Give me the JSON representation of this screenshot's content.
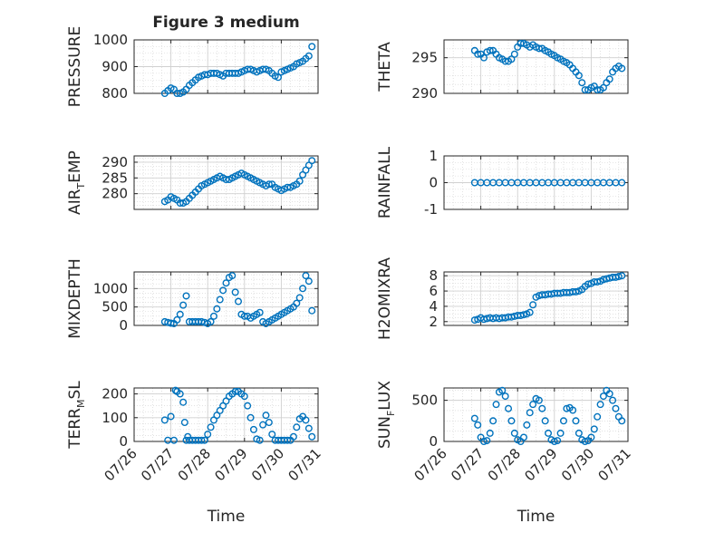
{
  "title": "Figure 3 medium",
  "xlabel": "Time",
  "x_ticks": [
    "07/26",
    "07/27",
    "07/28",
    "07/29",
    "07/30",
    "07/31"
  ],
  "colors": {
    "marker": "#0072BD",
    "axis": "#262626",
    "grid": "#d0d0d0",
    "background": "#ffffff"
  },
  "chart_data": [
    {
      "type": "scatter",
      "position": "row1-left",
      "ylabel_main": "PRESSURE",
      "ylabel_sub": "",
      "ylim": [
        800,
        1000
      ],
      "yticks": [
        "800",
        "900",
        "1000"
      ],
      "ytick_values": [
        800,
        900,
        1000
      ],
      "x": [
        "2023-07-26 20:00",
        "2023-07-26 22:00",
        "2023-07-27 00:00",
        "2023-07-27 02:00",
        "2023-07-27 04:00",
        "2023-07-27 06:00",
        "2023-07-27 08:00",
        "2023-07-27 10:00",
        "2023-07-27 12:00",
        "2023-07-27 14:00",
        "2023-07-27 16:00",
        "2023-07-27 18:00",
        "2023-07-27 20:00",
        "2023-07-27 22:00",
        "2023-07-28 00:00",
        "2023-07-28 02:00",
        "2023-07-28 04:00",
        "2023-07-28 06:00",
        "2023-07-28 08:00",
        "2023-07-28 10:00",
        "2023-07-28 12:00",
        "2023-07-28 14:00",
        "2023-07-28 16:00",
        "2023-07-28 18:00",
        "2023-07-28 20:00",
        "2023-07-28 22:00",
        "2023-07-29 00:00",
        "2023-07-29 02:00",
        "2023-07-29 04:00",
        "2023-07-29 06:00",
        "2023-07-29 08:00",
        "2023-07-29 10:00",
        "2023-07-29 12:00",
        "2023-07-29 14:00",
        "2023-07-29 16:00",
        "2023-07-29 18:00",
        "2023-07-29 20:00",
        "2023-07-29 22:00",
        "2023-07-30 00:00",
        "2023-07-30 02:00",
        "2023-07-30 04:00",
        "2023-07-30 06:00",
        "2023-07-30 08:00",
        "2023-07-30 10:00",
        "2023-07-30 12:00",
        "2023-07-30 14:00",
        "2023-07-30 16:00",
        "2023-07-30 18:00",
        "2023-07-30 20:00"
      ],
      "y": [
        800,
        810,
        820,
        815,
        800,
        800,
        805,
        815,
        830,
        840,
        850,
        860,
        865,
        870,
        870,
        875,
        875,
        875,
        870,
        865,
        875,
        875,
        875,
        875,
        875,
        880,
        885,
        890,
        890,
        885,
        880,
        885,
        890,
        890,
        885,
        875,
        865,
        860,
        880,
        885,
        890,
        895,
        900,
        910,
        915,
        920,
        930,
        940,
        975
      ]
    },
    {
      "type": "scatter",
      "position": "row1-right",
      "ylabel_main": "THETA",
      "ylabel_sub": "",
      "ylim": [
        290,
        297.5
      ],
      "yticks": [
        "290",
        "295"
      ],
      "ytick_values": [
        290,
        295
      ],
      "x": [
        "2023-07-26 20:00",
        "2023-07-26 22:00",
        "2023-07-27 00:00",
        "2023-07-27 02:00",
        "2023-07-27 04:00",
        "2023-07-27 06:00",
        "2023-07-27 08:00",
        "2023-07-27 10:00",
        "2023-07-27 12:00",
        "2023-07-27 14:00",
        "2023-07-27 16:00",
        "2023-07-27 18:00",
        "2023-07-27 20:00",
        "2023-07-27 22:00",
        "2023-07-28 00:00",
        "2023-07-28 02:00",
        "2023-07-28 04:00",
        "2023-07-28 06:00",
        "2023-07-28 08:00",
        "2023-07-28 10:00",
        "2023-07-28 12:00",
        "2023-07-28 14:00",
        "2023-07-28 16:00",
        "2023-07-28 18:00",
        "2023-07-28 20:00",
        "2023-07-28 22:00",
        "2023-07-29 00:00",
        "2023-07-29 02:00",
        "2023-07-29 04:00",
        "2023-07-29 06:00",
        "2023-07-29 08:00",
        "2023-07-29 10:00",
        "2023-07-29 12:00",
        "2023-07-29 14:00",
        "2023-07-29 16:00",
        "2023-07-29 18:00",
        "2023-07-29 20:00",
        "2023-07-29 22:00",
        "2023-07-30 00:00",
        "2023-07-30 02:00",
        "2023-07-30 04:00",
        "2023-07-30 06:00",
        "2023-07-30 08:00",
        "2023-07-30 10:00",
        "2023-07-30 12:00",
        "2023-07-30 14:00",
        "2023-07-30 16:00",
        "2023-07-30 18:00",
        "2023-07-30 20:00"
      ],
      "y": [
        296,
        295.5,
        295.5,
        295,
        295.8,
        296,
        296,
        295.5,
        295,
        294.8,
        294.5,
        294.5,
        294.8,
        295.5,
        296.5,
        297,
        297,
        296.8,
        296.5,
        296.8,
        296.5,
        296.3,
        296.3,
        296,
        295.8,
        295.5,
        295.3,
        295,
        294.8,
        294.5,
        294.3,
        294,
        293.5,
        293,
        292.5,
        291.5,
        290.5,
        290.5,
        290.8,
        291,
        290.5,
        290.5,
        290.8,
        291.5,
        292,
        293,
        293.5,
        293.8,
        293.5
      ]
    },
    {
      "type": "scatter",
      "position": "row2-left",
      "ylabel_main": "AIR",
      "ylabel_sub": "T",
      "ylabel_rest": "EMP",
      "ylim": [
        275,
        292
      ],
      "yticks": [
        "280",
        "285",
        "290"
      ],
      "ytick_values": [
        280,
        285,
        290
      ],
      "x": [
        "2023-07-26 20:00",
        "2023-07-26 22:00",
        "2023-07-27 00:00",
        "2023-07-27 02:00",
        "2023-07-27 04:00",
        "2023-07-27 06:00",
        "2023-07-27 08:00",
        "2023-07-27 10:00",
        "2023-07-27 12:00",
        "2023-07-27 14:00",
        "2023-07-27 16:00",
        "2023-07-27 18:00",
        "2023-07-27 20:00",
        "2023-07-27 22:00",
        "2023-07-28 00:00",
        "2023-07-28 02:00",
        "2023-07-28 04:00",
        "2023-07-28 06:00",
        "2023-07-28 08:00",
        "2023-07-28 10:00",
        "2023-07-28 12:00",
        "2023-07-28 14:00",
        "2023-07-28 16:00",
        "2023-07-28 18:00",
        "2023-07-28 20:00",
        "2023-07-28 22:00",
        "2023-07-29 00:00",
        "2023-07-29 02:00",
        "2023-07-29 04:00",
        "2023-07-29 06:00",
        "2023-07-29 08:00",
        "2023-07-29 10:00",
        "2023-07-29 12:00",
        "2023-07-29 14:00",
        "2023-07-29 16:00",
        "2023-07-29 18:00",
        "2023-07-29 20:00",
        "2023-07-29 22:00",
        "2023-07-30 00:00",
        "2023-07-30 02:00",
        "2023-07-30 04:00",
        "2023-07-30 06:00",
        "2023-07-30 08:00",
        "2023-07-30 10:00",
        "2023-07-30 12:00",
        "2023-07-30 14:00",
        "2023-07-30 16:00",
        "2023-07-30 18:00",
        "2023-07-30 20:00"
      ],
      "y": [
        277.5,
        278,
        279,
        278.5,
        278,
        277,
        277,
        277.5,
        278.5,
        279.5,
        280.5,
        281.5,
        282.5,
        283,
        283.5,
        284,
        284.5,
        285,
        285.5,
        285,
        284.5,
        284.5,
        285,
        285.5,
        286,
        286.5,
        286,
        285.5,
        285,
        284.5,
        284,
        283.5,
        283,
        282.5,
        283,
        283,
        282,
        281.5,
        281,
        281.5,
        282,
        282,
        282.5,
        283,
        284,
        286,
        287.5,
        289,
        290.5
      ]
    },
    {
      "type": "scatter",
      "position": "row2-right",
      "ylabel_main": "RAINFALL",
      "ylabel_sub": "",
      "ylim": [
        -1,
        1
      ],
      "yticks": [
        "-1",
        "0",
        "1"
      ],
      "ytick_values": [
        -1,
        0,
        1
      ],
      "x": [
        "2023-07-26 20:00",
        "2023-07-27 00:00",
        "2023-07-27 04:00",
        "2023-07-27 08:00",
        "2023-07-27 12:00",
        "2023-07-27 16:00",
        "2023-07-27 20:00",
        "2023-07-28 00:00",
        "2023-07-28 04:00",
        "2023-07-28 08:00",
        "2023-07-28 12:00",
        "2023-07-28 16:00",
        "2023-07-28 20:00",
        "2023-07-29 00:00",
        "2023-07-29 04:00",
        "2023-07-29 08:00",
        "2023-07-29 12:00",
        "2023-07-29 16:00",
        "2023-07-29 20:00",
        "2023-07-30 00:00",
        "2023-07-30 04:00",
        "2023-07-30 08:00",
        "2023-07-30 12:00",
        "2023-07-30 16:00",
        "2023-07-30 20:00"
      ],
      "y": [
        0,
        0,
        0,
        0,
        0,
        0,
        0,
        0,
        0,
        0,
        0,
        0,
        0,
        0,
        0,
        0,
        0,
        0,
        0,
        0,
        0,
        0,
        0,
        0,
        0
      ]
    },
    {
      "type": "scatter",
      "position": "row3-left",
      "ylabel_main": "MIXDEPTH",
      "ylabel_sub": "",
      "ylim": [
        0,
        1450
      ],
      "yticks": [
        "0",
        "500",
        "1000"
      ],
      "ytick_values": [
        0,
        500,
        1000
      ],
      "x": [
        "2023-07-26 20:00",
        "2023-07-26 22:00",
        "2023-07-27 00:00",
        "2023-07-27 02:00",
        "2023-07-27 04:00",
        "2023-07-27 06:00",
        "2023-07-27 08:00",
        "2023-07-27 10:00",
        "2023-07-27 12:00",
        "2023-07-27 14:00",
        "2023-07-27 16:00",
        "2023-07-27 18:00",
        "2023-07-27 20:00",
        "2023-07-27 22:00",
        "2023-07-28 00:00",
        "2023-07-28 02:00",
        "2023-07-28 04:00",
        "2023-07-28 06:00",
        "2023-07-28 08:00",
        "2023-07-28 10:00",
        "2023-07-28 12:00",
        "2023-07-28 14:00",
        "2023-07-28 16:00",
        "2023-07-28 18:00",
        "2023-07-28 20:00",
        "2023-07-28 22:00",
        "2023-07-29 00:00",
        "2023-07-29 02:00",
        "2023-07-29 04:00",
        "2023-07-29 06:00",
        "2023-07-29 08:00",
        "2023-07-29 10:00",
        "2023-07-29 12:00",
        "2023-07-29 14:00",
        "2023-07-29 16:00",
        "2023-07-29 18:00",
        "2023-07-29 20:00",
        "2023-07-29 22:00",
        "2023-07-30 00:00",
        "2023-07-30 02:00",
        "2023-07-30 04:00",
        "2023-07-30 06:00",
        "2023-07-30 08:00",
        "2023-07-30 10:00",
        "2023-07-30 12:00",
        "2023-07-30 14:00",
        "2023-07-30 16:00",
        "2023-07-30 18:00",
        "2023-07-30 20:00"
      ],
      "y": [
        100,
        80,
        60,
        50,
        150,
        300,
        550,
        800,
        100,
        100,
        100,
        100,
        100,
        80,
        50,
        100,
        250,
        450,
        700,
        950,
        1150,
        1300,
        1350,
        900,
        650,
        300,
        250,
        250,
        200,
        250,
        300,
        350,
        100,
        50,
        100,
        150,
        200,
        250,
        300,
        350,
        400,
        450,
        500,
        600,
        750,
        1000,
        1350,
        1200,
        400
      ]
    },
    {
      "type": "scatter",
      "position": "row3-right",
      "ylabel_main": "H2OMIXRA",
      "ylabel_sub": "",
      "ylim": [
        1.5,
        8.5
      ],
      "yticks": [
        "2",
        "4",
        "6",
        "8"
      ],
      "ytick_values": [
        2,
        4,
        6,
        8
      ],
      "x": [
        "2023-07-26 20:00",
        "2023-07-26 22:00",
        "2023-07-27 00:00",
        "2023-07-27 02:00",
        "2023-07-27 04:00",
        "2023-07-27 06:00",
        "2023-07-27 08:00",
        "2023-07-27 10:00",
        "2023-07-27 12:00",
        "2023-07-27 14:00",
        "2023-07-27 16:00",
        "2023-07-27 18:00",
        "2023-07-27 20:00",
        "2023-07-27 22:00",
        "2023-07-28 00:00",
        "2023-07-28 02:00",
        "2023-07-28 04:00",
        "2023-07-28 06:00",
        "2023-07-28 08:00",
        "2023-07-28 10:00",
        "2023-07-28 12:00",
        "2023-07-28 14:00",
        "2023-07-28 16:00",
        "2023-07-28 18:00",
        "2023-07-28 20:00",
        "2023-07-28 22:00",
        "2023-07-29 00:00",
        "2023-07-29 02:00",
        "2023-07-29 04:00",
        "2023-07-29 06:00",
        "2023-07-29 08:00",
        "2023-07-29 10:00",
        "2023-07-29 12:00",
        "2023-07-29 14:00",
        "2023-07-29 16:00",
        "2023-07-29 18:00",
        "2023-07-29 20:00",
        "2023-07-29 22:00",
        "2023-07-30 00:00",
        "2023-07-30 02:00",
        "2023-07-30 04:00",
        "2023-07-30 06:00",
        "2023-07-30 08:00",
        "2023-07-30 10:00",
        "2023-07-30 12:00",
        "2023-07-30 14:00",
        "2023-07-30 16:00",
        "2023-07-30 18:00",
        "2023-07-30 20:00"
      ],
      "y": [
        2.2,
        2.3,
        2.5,
        2.3,
        2.4,
        2.5,
        2.4,
        2.5,
        2.4,
        2.5,
        2.5,
        2.6,
        2.6,
        2.7,
        2.8,
        2.8,
        2.9,
        3.0,
        3.2,
        4.2,
        5.2,
        5.4,
        5.5,
        5.5,
        5.6,
        5.6,
        5.7,
        5.7,
        5.7,
        5.8,
        5.8,
        5.8,
        5.9,
        5.9,
        6.0,
        6.2,
        6.6,
        6.9,
        7.0,
        7.2,
        7.2,
        7.3,
        7.5,
        7.6,
        7.7,
        7.8,
        7.8,
        7.9,
        8.0
      ]
    },
    {
      "type": "scatter",
      "position": "row4-left",
      "ylabel_main": "TERR",
      "ylabel_sub": "M",
      "ylabel_rest": "SL",
      "ylim": [
        0,
        225
      ],
      "yticks": [
        "0",
        "100",
        "200"
      ],
      "ytick_values": [
        0,
        100,
        200
      ],
      "x": [
        "2023-07-26 20:00",
        "2023-07-26 22:00",
        "2023-07-27 00:00",
        "2023-07-27 02:00",
        "2023-07-27 03:00",
        "2023-07-27 04:00",
        "2023-07-27 06:00",
        "2023-07-27 08:00",
        "2023-07-27 09:00",
        "2023-07-27 10:00",
        "2023-07-27 11:00",
        "2023-07-27 12:00",
        "2023-07-27 14:00",
        "2023-07-27 16:00",
        "2023-07-27 18:00",
        "2023-07-27 20:00",
        "2023-07-27 22:00",
        "2023-07-28 00:00",
        "2023-07-28 02:00",
        "2023-07-28 04:00",
        "2023-07-28 06:00",
        "2023-07-28 08:00",
        "2023-07-28 10:00",
        "2023-07-28 12:00",
        "2023-07-28 14:00",
        "2023-07-28 16:00",
        "2023-07-28 18:00",
        "2023-07-28 20:00",
        "2023-07-28 22:00",
        "2023-07-29 00:00",
        "2023-07-29 02:00",
        "2023-07-29 04:00",
        "2023-07-29 06:00",
        "2023-07-29 08:00",
        "2023-07-29 10:00",
        "2023-07-29 12:00",
        "2023-07-29 14:00",
        "2023-07-29 16:00",
        "2023-07-29 18:00",
        "2023-07-29 20:00",
        "2023-07-29 22:00",
        "2023-07-30 00:00",
        "2023-07-30 02:00",
        "2023-07-30 04:00",
        "2023-07-30 06:00",
        "2023-07-30 08:00",
        "2023-07-30 10:00",
        "2023-07-30 12:00",
        "2023-07-30 14:00",
        "2023-07-30 16:00",
        "2023-07-30 18:00",
        "2023-07-30 20:00"
      ],
      "y": [
        90,
        5,
        105,
        5,
        215,
        210,
        200,
        165,
        80,
        5,
        20,
        5,
        5,
        5,
        5,
        5,
        5,
        30,
        60,
        90,
        110,
        130,
        150,
        170,
        190,
        200,
        210,
        210,
        200,
        190,
        150,
        100,
        50,
        10,
        5,
        70,
        110,
        80,
        30,
        5,
        5,
        5,
        5,
        5,
        5,
        20,
        60,
        95,
        105,
        90,
        55,
        20
      ]
    },
    {
      "type": "scatter",
      "position": "row4-right",
      "ylabel_main": "SUN",
      "ylabel_sub": "F",
      "ylabel_rest": "LUX",
      "ylim": [
        0,
        650
      ],
      "yticks": [
        "0",
        "500"
      ],
      "ytick_values": [
        0,
        500
      ],
      "x": [
        "2023-07-26 20:00",
        "2023-07-26 22:00",
        "2023-07-27 00:00",
        "2023-07-27 02:00",
        "2023-07-27 04:00",
        "2023-07-27 06:00",
        "2023-07-27 08:00",
        "2023-07-27 10:00",
        "2023-07-27 12:00",
        "2023-07-27 14:00",
        "2023-07-27 16:00",
        "2023-07-27 18:00",
        "2023-07-27 20:00",
        "2023-07-27 22:00",
        "2023-07-28 00:00",
        "2023-07-28 02:00",
        "2023-07-28 04:00",
        "2023-07-28 06:00",
        "2023-07-28 08:00",
        "2023-07-28 10:00",
        "2023-07-28 12:00",
        "2023-07-28 14:00",
        "2023-07-28 16:00",
        "2023-07-28 18:00",
        "2023-07-28 20:00",
        "2023-07-28 22:00",
        "2023-07-29 00:00",
        "2023-07-29 02:00",
        "2023-07-29 04:00",
        "2023-07-29 06:00",
        "2023-07-29 08:00",
        "2023-07-29 10:00",
        "2023-07-29 12:00",
        "2023-07-29 14:00",
        "2023-07-29 16:00",
        "2023-07-29 18:00",
        "2023-07-29 20:00",
        "2023-07-29 22:00",
        "2023-07-30 00:00",
        "2023-07-30 02:00",
        "2023-07-30 04:00",
        "2023-07-30 06:00",
        "2023-07-30 08:00",
        "2023-07-30 10:00",
        "2023-07-30 12:00",
        "2023-07-30 14:00",
        "2023-07-30 16:00",
        "2023-07-30 18:00",
        "2023-07-30 20:00"
      ],
      "y": [
        280,
        200,
        50,
        0,
        10,
        100,
        250,
        450,
        600,
        620,
        550,
        400,
        250,
        100,
        20,
        0,
        50,
        200,
        350,
        450,
        520,
        500,
        400,
        250,
        100,
        20,
        0,
        10,
        100,
        250,
        400,
        410,
        380,
        250,
        100,
        20,
        0,
        10,
        50,
        150,
        300,
        450,
        550,
        620,
        580,
        500,
        400,
        300,
        250
      ]
    }
  ]
}
